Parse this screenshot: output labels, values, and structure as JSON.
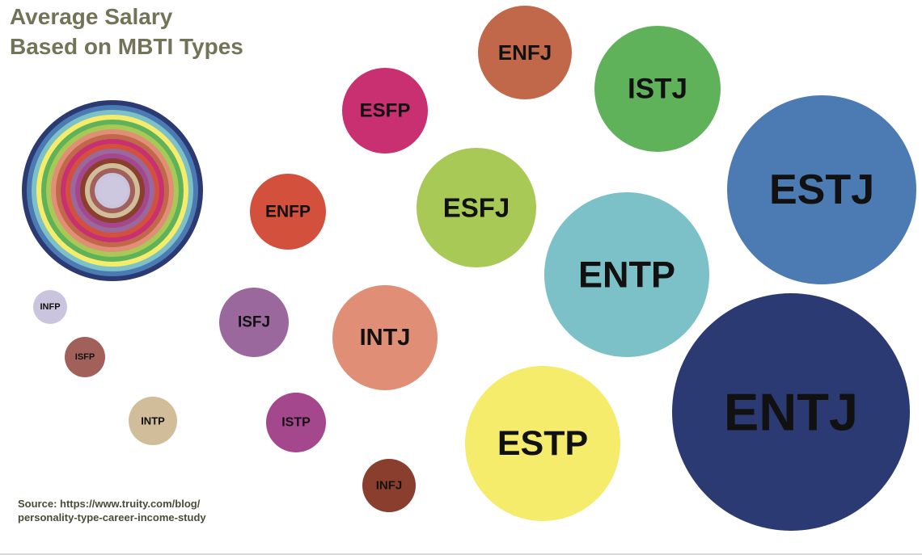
{
  "title_lines": [
    "Average Salary",
    "Based on MBTI Types"
  ],
  "source_lines": [
    "Source: https://www.truity.com/blog/",
    "personality-type-career-income-study"
  ],
  "chart_data": {
    "type": "bubble",
    "title": "Average Salary Based on MBTI Types",
    "encoding": "bubble area proportional to average salary",
    "bubbles": [
      {
        "label": "ENTJ",
        "color": "#2b3a72",
        "relative_size": 1.0
      },
      {
        "label": "ESTJ",
        "color": "#4c7ab3",
        "relative_size": 0.64
      },
      {
        "label": "ENTP",
        "color": "#7bc1c7",
        "relative_size": 0.48
      },
      {
        "label": "ESTP",
        "color": "#f6ec6b",
        "relative_size": 0.42
      },
      {
        "label": "ISTJ",
        "color": "#5fb15a",
        "relative_size": 0.28
      },
      {
        "label": "ESFJ",
        "color": "#a8c956",
        "relative_size": 0.25
      },
      {
        "label": "INTJ",
        "color": "#e08e76",
        "relative_size": 0.2
      },
      {
        "label": "ENFJ",
        "color": "#c2684a",
        "relative_size": 0.15
      },
      {
        "label": "ESFP",
        "color": "#c93072",
        "relative_size": 0.13
      },
      {
        "label": "ENFP",
        "color": "#d3503c",
        "relative_size": 0.1
      },
      {
        "label": "ISFJ",
        "color": "#9a689c",
        "relative_size": 0.082
      },
      {
        "label": "ISTP",
        "color": "#a4478d",
        "relative_size": 0.063
      },
      {
        "label": "INFJ",
        "color": "#8a3e2e",
        "relative_size": 0.05
      },
      {
        "label": "INTP",
        "color": "#d2bd9b",
        "relative_size": 0.041
      },
      {
        "label": "ISFP",
        "color": "#a2605b",
        "relative_size": 0.029
      },
      {
        "label": "INFP",
        "color": "#cac4de",
        "relative_size": 0.022
      }
    ],
    "legend_rings": [
      "#2b3a72",
      "#4c7ab3",
      "#7bc1c7",
      "#f6ec6b",
      "#5fb15a",
      "#a8c956",
      "#e08e76",
      "#c2684a",
      "#c93072",
      "#d3503c",
      "#9a689c",
      "#a4478d",
      "#8a3e2e",
      "#d2bd9b",
      "#a2605b",
      "#cac4de"
    ],
    "legend_position": "left",
    "xlabel": "",
    "ylabel": ""
  }
}
